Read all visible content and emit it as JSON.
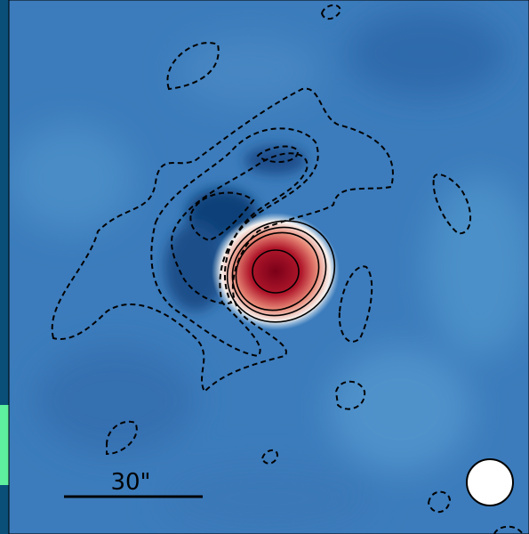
{
  "scale_bar": {
    "label": "30\""
  }
}
